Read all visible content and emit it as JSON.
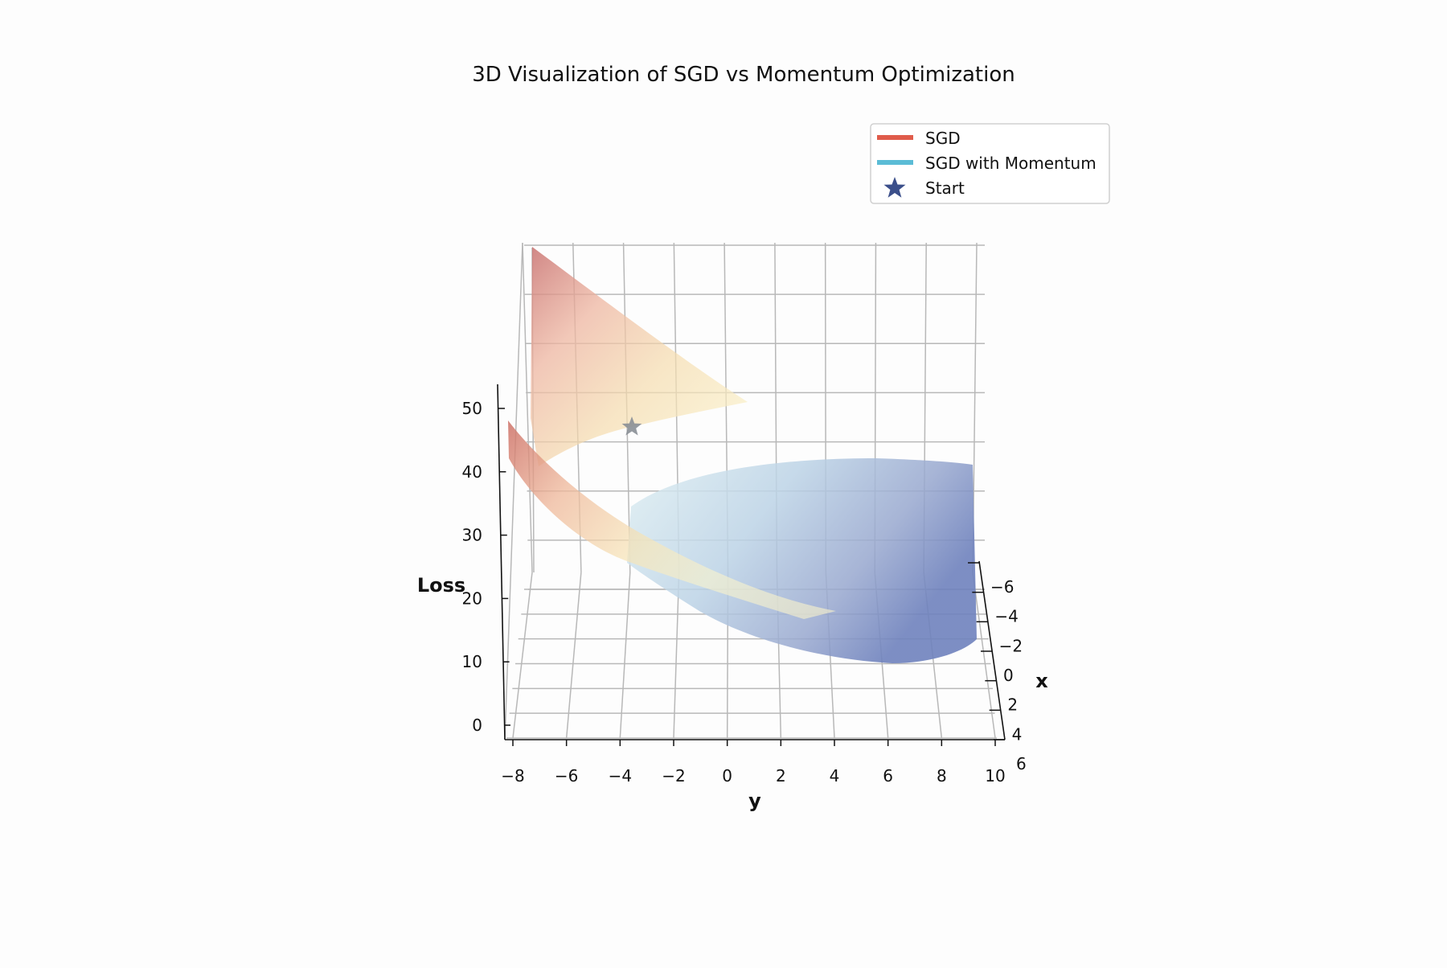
{
  "chart_data": {
    "type": "surface3d",
    "title": "3D Visualization of SGD vs Momentum Optimization",
    "xlabel": "x",
    "ylabel": "y",
    "zlabel": "Loss",
    "x_ticks": [
      "−6",
      "−4",
      "−2",
      "0",
      "2",
      "4",
      "6"
    ],
    "y_ticks": [
      "−8",
      "−6",
      "−4",
      "−2",
      "0",
      "2",
      "4",
      "6",
      "8",
      "10"
    ],
    "z_ticks": [
      "0",
      "10",
      "20",
      "30",
      "40",
      "50"
    ],
    "xlim": [
      -6,
      6
    ],
    "ylim": [
      -8,
      10
    ],
    "zlim": [
      0,
      50
    ],
    "grid": true,
    "legend_position": "top-right",
    "legend": [
      {
        "label": "SGD",
        "marker": "line",
        "color": "#e05c4b"
      },
      {
        "label": "SGD with Momentum",
        "marker": "line",
        "color": "#5bbcd6"
      },
      {
        "label": "Start",
        "marker": "star",
        "color": "#3b4f8a"
      }
    ],
    "start_point": {
      "x": 0,
      "y": -4,
      "z": 38
    },
    "surfaces": [
      {
        "name": "SGD",
        "colormap": [
          "#c8706f",
          "#eeb6a1",
          "#f7e7b8",
          "#fbf4cc"
        ]
      },
      {
        "name": "SGD with Momentum",
        "colormap": [
          "#d6e9ef",
          "#b7cde3",
          "#8e9ec9",
          "#6f82bd"
        ]
      }
    ]
  }
}
